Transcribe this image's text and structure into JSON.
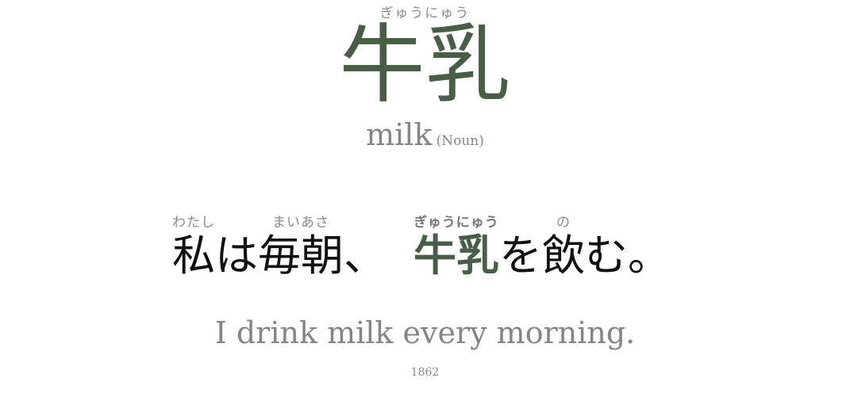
{
  "headword": {
    "reading": "ぎゅうにゅう",
    "kanji": "牛乳",
    "meaning": "milk",
    "part_of_speech": "(Noun)"
  },
  "sentence": {
    "segments": [
      {
        "text": "私",
        "ruby": "わたし"
      },
      {
        "text": "は",
        "ruby": ""
      },
      {
        "text": "毎朝",
        "ruby": "まいあさ"
      },
      {
        "text": "、",
        "ruby": ""
      },
      {
        "text": "牛乳",
        "ruby": "ぎゅうにゅう",
        "highlight": true
      },
      {
        "text": "を",
        "ruby": ""
      },
      {
        "text": "飲",
        "ruby": "の"
      },
      {
        "text": "む。",
        "ruby": ""
      }
    ],
    "translation": "I drink milk every morning."
  },
  "card_id": "1862",
  "colors": {
    "accent": "#465f45",
    "muted": "#858585"
  }
}
